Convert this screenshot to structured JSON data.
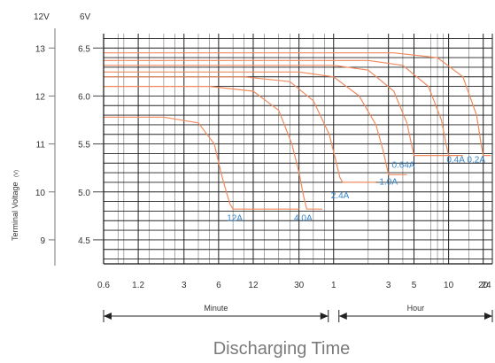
{
  "chart_data": {
    "type": "line",
    "title": "",
    "xlabel": "Discharging Time",
    "ylabel": "Terminal Voltage",
    "ylabel_unit": "(V)",
    "y_axis_headers": [
      "12V",
      "6V"
    ],
    "y_ticks_12v": [
      "13",
      "12",
      "11",
      "10",
      "9"
    ],
    "y_ticks_6v": [
      "6.5",
      "6.0",
      "5.5",
      "5.0",
      "4.5"
    ],
    "ylim_6v": [
      4.25,
      6.65
    ],
    "x_scale": "log",
    "x_unit_note": "minutes (left segment) then hours (right segment)",
    "x_ticks": [
      {
        "label": "0.6",
        "minutes": 0.6
      },
      {
        "label": "1.2",
        "minutes": 1.2
      },
      {
        "label": "3",
        "minutes": 3
      },
      {
        "label": "6",
        "minutes": 6
      },
      {
        "label": "12",
        "minutes": 12
      },
      {
        "label": "30",
        "minutes": 30
      },
      {
        "label": "1",
        "minutes": 60
      },
      {
        "label": "3",
        "minutes": 180
      },
      {
        "label": "5",
        "minutes": 300
      },
      {
        "label": "10",
        "minutes": 600
      },
      {
        "label": "20",
        "minutes": 1200
      },
      {
        "label": "24",
        "minutes": 1440
      }
    ],
    "x_segments": [
      {
        "label": "Minute",
        "from_minutes": 0.6,
        "to_minutes": 60
      },
      {
        "label": "Hour",
        "from_minutes": 60,
        "to_minutes": 1440
      }
    ],
    "grid": true,
    "line_color": "#f08a5d",
    "label_color": "#3a86c8",
    "series": [
      {
        "name": "12A",
        "x_minutes": [
          0.6,
          2,
          4,
          5.5,
          6.3,
          7,
          7.5,
          8,
          30
        ],
        "y_6v": [
          5.78,
          5.78,
          5.72,
          5.5,
          5.2,
          5.0,
          4.88,
          4.82,
          4.82
        ]
      },
      {
        "name": "4.0A",
        "x_minutes": [
          0.6,
          5,
          12,
          20,
          26,
          30,
          33,
          35,
          48
        ],
        "y_6v": [
          6.1,
          6.1,
          6.05,
          5.85,
          5.5,
          5.2,
          4.95,
          4.82,
          4.82
        ]
      },
      {
        "name": "2.4A",
        "x_minutes": [
          0.6,
          10,
          25,
          40,
          55,
          62,
          68,
          72,
          140
        ],
        "y_6v": [
          6.2,
          6.2,
          6.15,
          5.95,
          5.6,
          5.35,
          5.15,
          5.1,
          5.1
        ]
      },
      {
        "name": "1.0A",
        "x_minutes": [
          0.6,
          30,
          60,
          100,
          140,
          160,
          175,
          180,
          260
        ],
        "y_6v": [
          6.25,
          6.25,
          6.2,
          6.0,
          5.7,
          5.45,
          5.25,
          5.18,
          5.18
        ]
      },
      {
        "name": "0.64A",
        "x_minutes": [
          0.6,
          60,
          120,
          200,
          260,
          285,
          300,
          600
        ],
        "y_6v": [
          6.32,
          6.32,
          6.27,
          6.05,
          5.72,
          5.5,
          5.38,
          5.38
        ]
      },
      {
        "name": "0.4A",
        "x_minutes": [
          0.6,
          120,
          240,
          400,
          520,
          570,
          600,
          800
        ],
        "y_6v": [
          6.37,
          6.37,
          6.32,
          6.1,
          5.75,
          5.5,
          5.38,
          5.38
        ]
      },
      {
        "name": "0.2A",
        "x_minutes": [
          0.6,
          200,
          480,
          800,
          1050,
          1150,
          1200,
          1400
        ],
        "y_6v": [
          6.45,
          6.45,
          6.4,
          6.2,
          5.8,
          5.5,
          5.38,
          5.38
        ]
      }
    ]
  }
}
